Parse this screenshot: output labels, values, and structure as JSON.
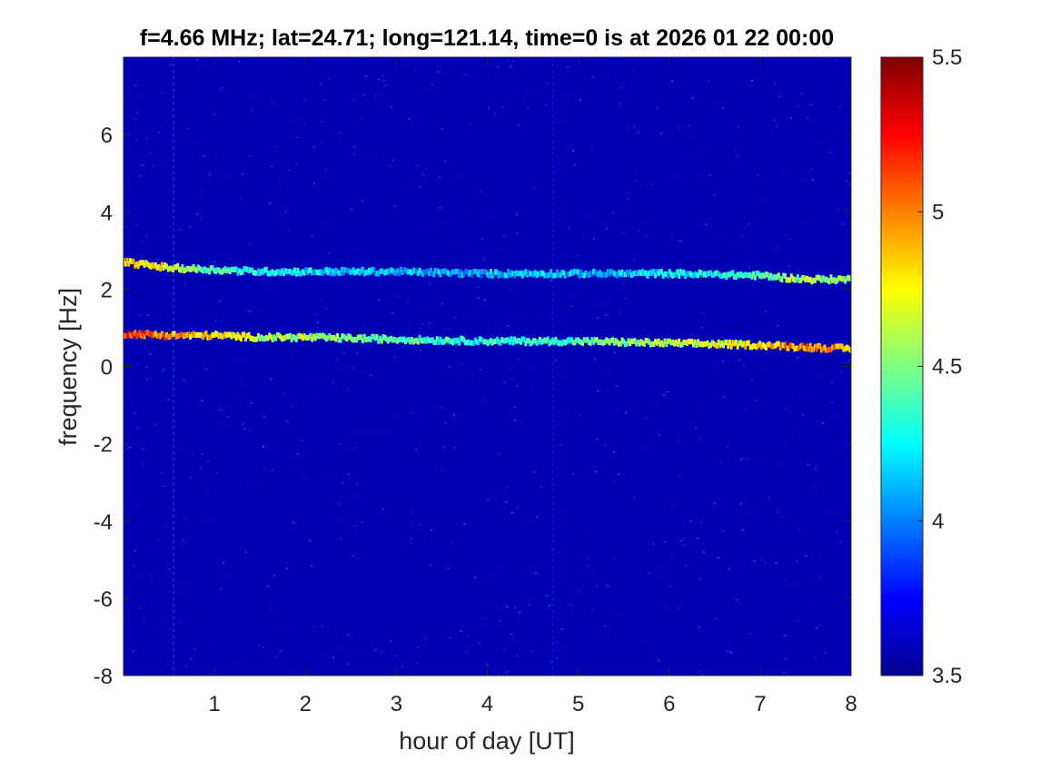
{
  "chart_data": {
    "type": "heatmap",
    "title": "f=4.66 MHz;  lat=24.71; long=121.14, time=0 is at 2026 01 22 00:00",
    "xlabel": "hour of day [UT]",
    "ylabel": "frequency [Hz]",
    "xlim": [
      0,
      8
    ],
    "ylim": [
      -8,
      8
    ],
    "x_ticks": [
      1,
      2,
      3,
      4,
      5,
      6,
      7,
      8
    ],
    "x_tick_labels": [
      "1",
      "2",
      "3",
      "4",
      "5",
      "6",
      "7",
      "8"
    ],
    "y_ticks": [
      -8,
      -6,
      -4,
      -2,
      0,
      2,
      4,
      6
    ],
    "y_tick_labels": [
      "-8",
      "-6",
      "-4",
      "-2",
      "0",
      "2",
      "4",
      "6"
    ],
    "colorbar": {
      "colormap": "jet",
      "clim": [
        3.5,
        5.5
      ],
      "ticks": [
        3.5,
        4,
        4.5,
        5,
        5.5
      ],
      "tick_labels": [
        "3.5",
        "4",
        "4.5",
        "5",
        "5.5"
      ]
    },
    "background_level": 3.6,
    "series": [
      {
        "x": [
          0,
          0.5,
          1,
          1.5,
          2,
          3,
          4,
          5,
          6,
          7,
          7.5,
          8
        ],
        "frequency": [
          2.7,
          2.55,
          2.5,
          2.45,
          2.45,
          2.45,
          2.4,
          2.4,
          2.4,
          2.35,
          2.25,
          2.25
        ],
        "peak_level": [
          4.9,
          4.7,
          4.4,
          4.3,
          4.2,
          4.1,
          4.1,
          4.1,
          4.2,
          4.4,
          4.6,
          4.5
        ]
      },
      {
        "x": [
          0,
          0.5,
          1,
          1.5,
          2,
          3,
          4,
          5,
          6,
          7,
          7.5,
          8
        ],
        "frequency": [
          0.85,
          0.8,
          0.8,
          0.75,
          0.75,
          0.7,
          0.65,
          0.65,
          0.6,
          0.55,
          0.5,
          0.45
        ],
        "peak_level": [
          5.1,
          5.0,
          4.8,
          4.6,
          4.6,
          4.4,
          4.3,
          4.4,
          4.6,
          4.8,
          5.0,
          4.9
        ]
      }
    ],
    "vertical_artifacts": [
      {
        "x": 0.55,
        "level": 3.9
      },
      {
        "x": 4.72,
        "level": 3.8
      }
    ]
  }
}
